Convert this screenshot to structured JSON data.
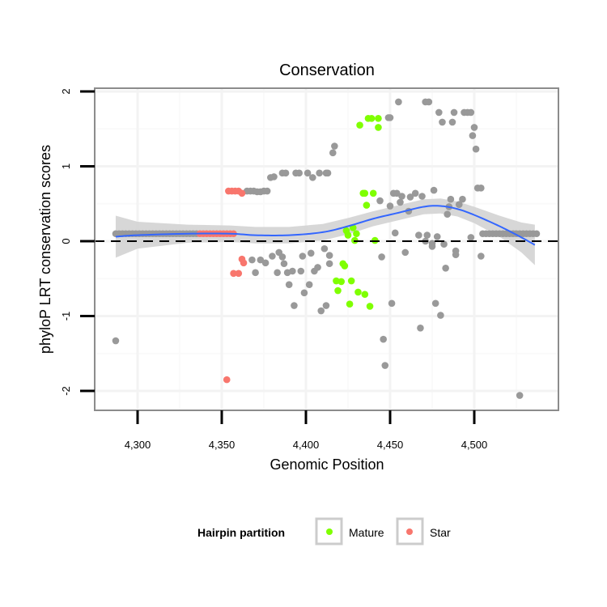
{
  "chart_data": {
    "type": "scatter",
    "title": "Conservation",
    "xlabel": "Genomic Position",
    "ylabel": "phyloP LRT conservation scores",
    "xlim": [
      4275,
      4550
    ],
    "ylim": [
      -2.25,
      2.05
    ],
    "x_ticks": [
      4300,
      4350,
      4400,
      4450,
      4500
    ],
    "x_tick_labels": [
      "4,300",
      "4,350",
      "4,400",
      "4,450",
      "4,500"
    ],
    "y_ticks": [
      2,
      1,
      0,
      -1,
      -2
    ],
    "y_tick_labels": [
      "2",
      "1",
      "0",
      "-1",
      "-2"
    ],
    "grid": true,
    "reference_line": {
      "y": 0,
      "style": "dashed"
    },
    "legend": {
      "title": "Hairpin partition",
      "placement": "bottom",
      "entries": [
        {
          "label": "Mature",
          "color": "#7FFF00"
        },
        {
          "label": "Star",
          "color": "#F8766D"
        }
      ]
    },
    "colors": {
      "other": "#999999",
      "Mature": "#7FFF00",
      "Star": "#F8766D",
      "smooth": "#3366FF",
      "band": "#D3D3D3"
    },
    "series": [
      {
        "name": "Other",
        "points": [
          [
            4287,
            -1.33
          ],
          [
            4287,
            0.1
          ],
          [
            4289,
            0.1
          ],
          [
            4291,
            0.1
          ],
          [
            4293,
            0.1
          ],
          [
            4295,
            0.1
          ],
          [
            4297,
            0.1
          ],
          [
            4299,
            0.1
          ],
          [
            4301,
            0.1
          ],
          [
            4303,
            0.1
          ],
          [
            4305,
            0.1
          ],
          [
            4307,
            0.1
          ],
          [
            4309,
            0.1
          ],
          [
            4311,
            0.1
          ],
          [
            4313,
            0.1
          ],
          [
            4315,
            0.1
          ],
          [
            4317,
            0.1
          ],
          [
            4319,
            0.1
          ],
          [
            4321,
            0.1
          ],
          [
            4323,
            0.1
          ],
          [
            4325,
            0.1
          ],
          [
            4327,
            0.1
          ],
          [
            4329,
            0.1
          ],
          [
            4331,
            0.1
          ],
          [
            4333,
            0.1
          ],
          [
            4335,
            0.1
          ],
          [
            4365,
            0.67
          ],
          [
            4367,
            0.67
          ],
          [
            4369,
            0.67
          ],
          [
            4371,
            0.66
          ],
          [
            4373,
            0.66
          ],
          [
            4375,
            0.67
          ],
          [
            4377,
            0.67
          ],
          [
            4379,
            0.85
          ],
          [
            4381,
            0.86
          ],
          [
            4386,
            0.91
          ],
          [
            4388,
            0.91
          ],
          [
            4394,
            0.91
          ],
          [
            4396,
            0.91
          ],
          [
            4401,
            0.91
          ],
          [
            4404,
            0.85
          ],
          [
            4408,
            0.91
          ],
          [
            4412,
            0.91
          ],
          [
            4416,
            1.18
          ],
          [
            4417,
            1.27
          ],
          [
            4413,
            0.91
          ],
          [
            4368,
            -0.25
          ],
          [
            4373,
            -0.25
          ],
          [
            4376,
            -0.29
          ],
          [
            4380,
            -0.2
          ],
          [
            4384,
            -0.15
          ],
          [
            4386,
            -0.21
          ],
          [
            4387,
            -0.3
          ],
          [
            4370,
            -0.42
          ],
          [
            4383,
            -0.42
          ],
          [
            4389,
            -0.42
          ],
          [
            4392,
            -0.4
          ],
          [
            4397,
            -0.4
          ],
          [
            4398,
            -0.2
          ],
          [
            4403,
            -0.16
          ],
          [
            4411,
            -0.1
          ],
          [
            4414,
            -0.19
          ],
          [
            4414,
            -0.3
          ],
          [
            4405,
            -0.4
          ],
          [
            4407,
            -0.35
          ],
          [
            4390,
            -0.58
          ],
          [
            4402,
            -0.58
          ],
          [
            4399,
            -0.69
          ],
          [
            4393,
            -0.86
          ],
          [
            4412,
            -0.86
          ],
          [
            4409,
            -0.93
          ],
          [
            4449,
            1.65
          ],
          [
            4450,
            1.65
          ],
          [
            4455,
            1.86
          ],
          [
            4471,
            1.86
          ],
          [
            4473,
            1.86
          ],
          [
            4479,
            1.72
          ],
          [
            4488,
            1.72
          ],
          [
            4494,
            1.72
          ],
          [
            4496,
            1.72
          ],
          [
            4498,
            1.72
          ],
          [
            4481,
            1.59
          ],
          [
            4487,
            1.59
          ],
          [
            4500,
            1.52
          ],
          [
            4499,
            1.41
          ],
          [
            4501,
            1.23
          ],
          [
            4502,
            0.71
          ],
          [
            4504,
            0.71
          ],
          [
            4444,
            0.54
          ],
          [
            4450,
            0.47
          ],
          [
            4452,
            0.64
          ],
          [
            4454,
            0.64
          ],
          [
            4457,
            0.6
          ],
          [
            4456,
            0.52
          ],
          [
            4462,
            0.59
          ],
          [
            4465,
            0.64
          ],
          [
            4469,
            0.6
          ],
          [
            4476,
            0.68
          ],
          [
            4461,
            0.4
          ],
          [
            4486,
            0.56
          ],
          [
            4493,
            0.56
          ],
          [
            4485,
            0.46
          ],
          [
            4491,
            0.49
          ],
          [
            4484,
            0.36
          ],
          [
            4453,
            0.11
          ],
          [
            4467,
            0.08
          ],
          [
            4472,
            0.08
          ],
          [
            4478,
            0.06
          ],
          [
            4498,
            0.05
          ],
          [
            4471,
            0.0
          ],
          [
            4475,
            -0.03
          ],
          [
            4475,
            -0.07
          ],
          [
            4482,
            -0.04
          ],
          [
            4445,
            -0.21
          ],
          [
            4459,
            -0.15
          ],
          [
            4489,
            -0.13
          ],
          [
            4489,
            -0.18
          ],
          [
            4504,
            -0.2
          ],
          [
            4483,
            -0.36
          ],
          [
            4451,
            -0.83
          ],
          [
            4477,
            -0.83
          ],
          [
            4480,
            -0.99
          ],
          [
            4468,
            -1.16
          ],
          [
            4446,
            -1.31
          ],
          [
            4447,
            -1.66
          ],
          [
            4527,
            -2.06
          ],
          [
            4505,
            0.1
          ],
          [
            4507,
            0.1
          ],
          [
            4509,
            0.1
          ],
          [
            4511,
            0.1
          ],
          [
            4513,
            0.1
          ],
          [
            4515,
            0.1
          ],
          [
            4517,
            0.1
          ],
          [
            4519,
            0.1
          ],
          [
            4521,
            0.1
          ],
          [
            4523,
            0.1
          ],
          [
            4525,
            0.1
          ],
          [
            4527,
            0.1
          ],
          [
            4529,
            0.1
          ],
          [
            4531,
            0.1
          ],
          [
            4533,
            0.1
          ],
          [
            4535,
            0.1
          ],
          [
            4537,
            0.1
          ]
        ]
      },
      {
        "name": "Mature",
        "points": [
          [
            4432,
            1.55
          ],
          [
            4437,
            1.64
          ],
          [
            4439,
            1.64
          ],
          [
            4443,
            1.64
          ],
          [
            4443,
            1.52
          ],
          [
            4434,
            0.64
          ],
          [
            4435,
            0.64
          ],
          [
            4440,
            0.64
          ],
          [
            4436,
            0.48
          ],
          [
            4424,
            0.14
          ],
          [
            4428,
            0.18
          ],
          [
            4425,
            0.08
          ],
          [
            4430,
            0.1
          ],
          [
            4429,
            0.01
          ],
          [
            4441,
            0.01
          ],
          [
            4422,
            -0.3
          ],
          [
            4423,
            -0.33
          ],
          [
            4418,
            -0.53
          ],
          [
            4421,
            -0.54
          ],
          [
            4427,
            -0.53
          ],
          [
            4419,
            -0.66
          ],
          [
            4431,
            -0.68
          ],
          [
            4435,
            -0.71
          ],
          [
            4426,
            -0.84
          ],
          [
            4438,
            -0.87
          ]
        ]
      },
      {
        "name": "Star",
        "points": [
          [
            4337,
            0.1
          ],
          [
            4339,
            0.1
          ],
          [
            4341,
            0.1
          ],
          [
            4343,
            0.1
          ],
          [
            4345,
            0.1
          ],
          [
            4347,
            0.1
          ],
          [
            4349,
            0.1
          ],
          [
            4351,
            0.1
          ],
          [
            4353,
            0.1
          ],
          [
            4355,
            0.1
          ],
          [
            4357,
            0.1
          ],
          [
            4354,
            0.67
          ],
          [
            4356,
            0.67
          ],
          [
            4358,
            0.67
          ],
          [
            4360,
            0.67
          ],
          [
            4362,
            0.64
          ],
          [
            4362,
            -0.24
          ],
          [
            4363,
            -0.29
          ],
          [
            4357,
            -0.43
          ],
          [
            4360,
            -0.43
          ],
          [
            4353,
            -1.85
          ]
        ]
      }
    ],
    "smooth": {
      "x": [
        4287,
        4300,
        4330,
        4355,
        4370,
        4390,
        4410,
        4425,
        4440,
        4455,
        4470,
        4480,
        4490,
        4500,
        4515,
        4528,
        4536
      ],
      "y": [
        0.06,
        0.08,
        0.1,
        0.1,
        0.08,
        0.08,
        0.12,
        0.2,
        0.3,
        0.38,
        0.46,
        0.47,
        0.43,
        0.35,
        0.2,
        0.05,
        -0.05
      ],
      "se": [
        0.28,
        0.18,
        0.12,
        0.11,
        0.11,
        0.11,
        0.11,
        0.11,
        0.1,
        0.1,
        0.1,
        0.1,
        0.1,
        0.11,
        0.14,
        0.2,
        0.27
      ]
    }
  }
}
